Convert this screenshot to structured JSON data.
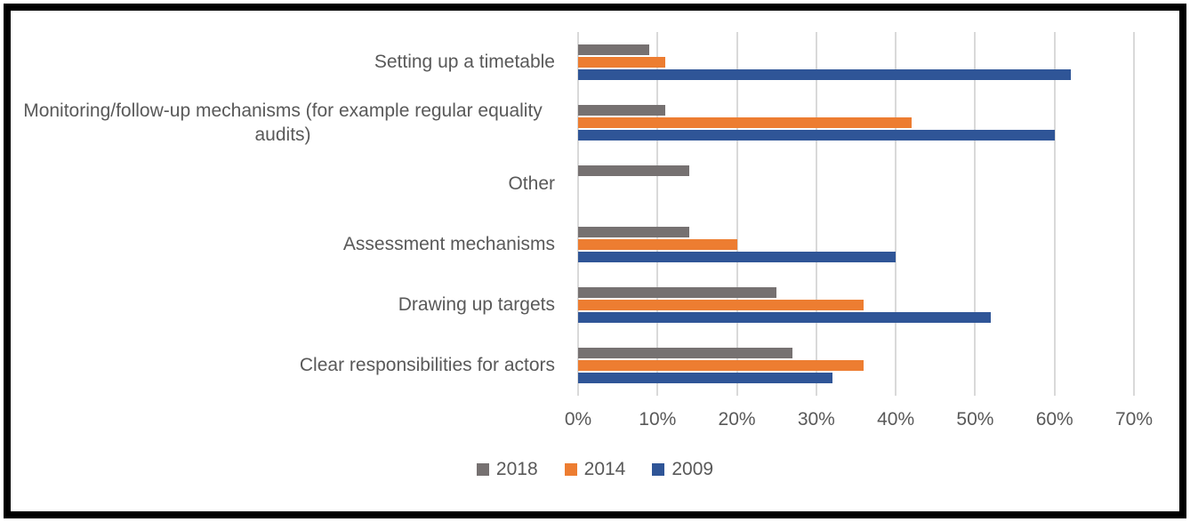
{
  "chart_data": {
    "type": "bar",
    "orientation": "horizontal",
    "title": "",
    "xlabel": "",
    "ylabel": "",
    "xlim": [
      0,
      70
    ],
    "x_ticks": [
      "0%",
      "10%",
      "20%",
      "30%",
      "40%",
      "50%",
      "60%",
      "70%"
    ],
    "grid": "vertical",
    "legend_position": "bottom",
    "categories": [
      "Setting up a timetable",
      "Monitoring/follow-up mechanisms (for example regular equality audits)",
      "Other",
      "Assessment mechanisms",
      "Drawing up targets",
      "Clear responsibilities for actors"
    ],
    "series": [
      {
        "name": "2018",
        "color": "#767171",
        "values": [
          9,
          11,
          14,
          14,
          25,
          27
        ]
      },
      {
        "name": "2014",
        "color": "#ED7D31",
        "values": [
          11,
          42,
          0,
          20,
          36,
          36
        ]
      },
      {
        "name": "2009",
        "color": "#2F5597",
        "values": [
          62,
          60,
          0,
          40,
          52,
          32
        ]
      }
    ]
  },
  "colors": {
    "gridline": "#D9D9D9",
    "axis_text": "#595959",
    "frame_border": "#000000",
    "background": "#FFFFFF"
  }
}
